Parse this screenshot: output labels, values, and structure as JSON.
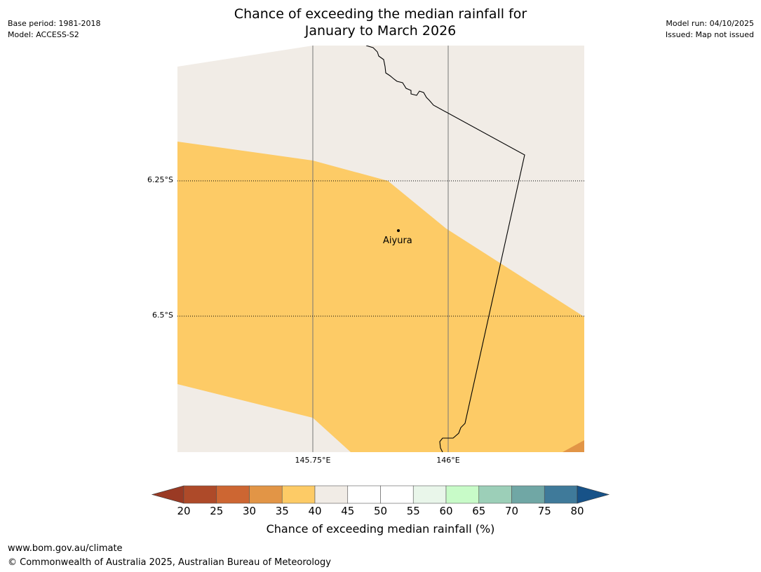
{
  "title": {
    "line1": "Chance of exceeding the median rainfall for",
    "line2": "January to March 2026"
  },
  "meta_left": {
    "base_period": "Base period: 1981-2018",
    "model": "Model: ACCESS-S2"
  },
  "meta_right": {
    "model_run": "Model run: 04/10/2025",
    "issued": "Issued: Map not issued"
  },
  "map": {
    "latitude_labels": [
      "6.25°S",
      "6.5°S"
    ],
    "longitude_labels": [
      "145.75°E",
      "146°E"
    ],
    "place": {
      "name": "Aiyura"
    }
  },
  "colorbar": {
    "ticks": [
      "20",
      "25",
      "30",
      "35",
      "40",
      "45",
      "50",
      "55",
      "60",
      "65",
      "70",
      "75",
      "80"
    ],
    "colors": [
      "#ae4a29",
      "#cd6632",
      "#e29546",
      "#fdcb66",
      "#f1ece6",
      "#ffffff",
      "#ffffff",
      "#e9f6ea",
      "#c8fbc8",
      "#9ccfb8",
      "#70a7a5",
      "#3f7a9a"
    ],
    "under_color": "#9a3a24",
    "over_color": "#175288",
    "label": "Chance of exceeding median rainfall (%)"
  },
  "footer": {
    "website": "www.bom.gov.au/climate",
    "copyright": "© Commonwealth of Australia 2025, Australian Bureau of Meteorology"
  }
}
